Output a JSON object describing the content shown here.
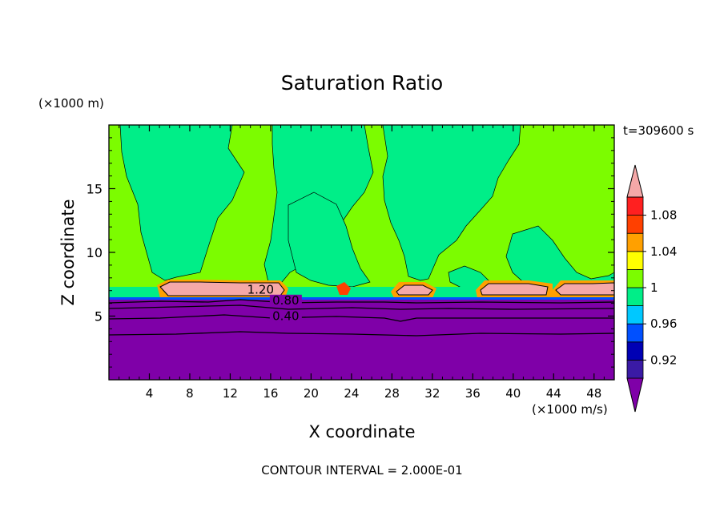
{
  "chart_data": {
    "type": "heatmap",
    "title": "Saturation Ratio",
    "xlabel": "X coordinate",
    "ylabel": "Z coordinate",
    "x_unit": "(×1000 m/s)",
    "y_unit": "(×1000 m)",
    "time_label": "t=309600 s",
    "footer": "CONTOUR INTERVAL = 2.000E-01",
    "xlim": [
      0,
      50
    ],
    "ylim": [
      0,
      20
    ],
    "x_ticks": [
      4,
      8,
      12,
      16,
      20,
      24,
      28,
      32,
      36,
      40,
      44,
      48
    ],
    "y_ticks": [
      5,
      10,
      15
    ],
    "colorbar": {
      "levels": [
        0.9,
        0.92,
        0.94,
        0.96,
        0.98,
        1.0,
        1.02,
        1.04,
        1.06,
        1.08,
        1.1
      ],
      "tick_labels": [
        "0.92",
        "0.96",
        "1",
        "1.04",
        "1.08"
      ],
      "colors": [
        "#7f00a8",
        "#3a1aa5",
        "#0000b4",
        "#0050ff",
        "#00c8ff",
        "#00ee88",
        "#7cfc00",
        "#ffff00",
        "#ffa000",
        "#ff4000",
        "#ff2020",
        "#f5a8a8"
      ]
    },
    "contour_labels": [
      {
        "text": "1.20",
        "x": 15.0,
        "y": 6.9
      },
      {
        "text": "0.80",
        "x": 17.5,
        "y": 6.05
      },
      {
        "text": "0.40",
        "x": 17.5,
        "y": 4.8
      }
    ],
    "regions": {
      "dry_layer_top": 6.2,
      "moist_layer_base": 6.5,
      "supersaturated_cloud_x": [
        [
          5,
          17.5
        ],
        [
          23,
          24
        ],
        [
          28.5,
          32
        ],
        [
          36.5,
          43.5
        ],
        [
          44,
          50
        ]
      ]
    }
  }
}
